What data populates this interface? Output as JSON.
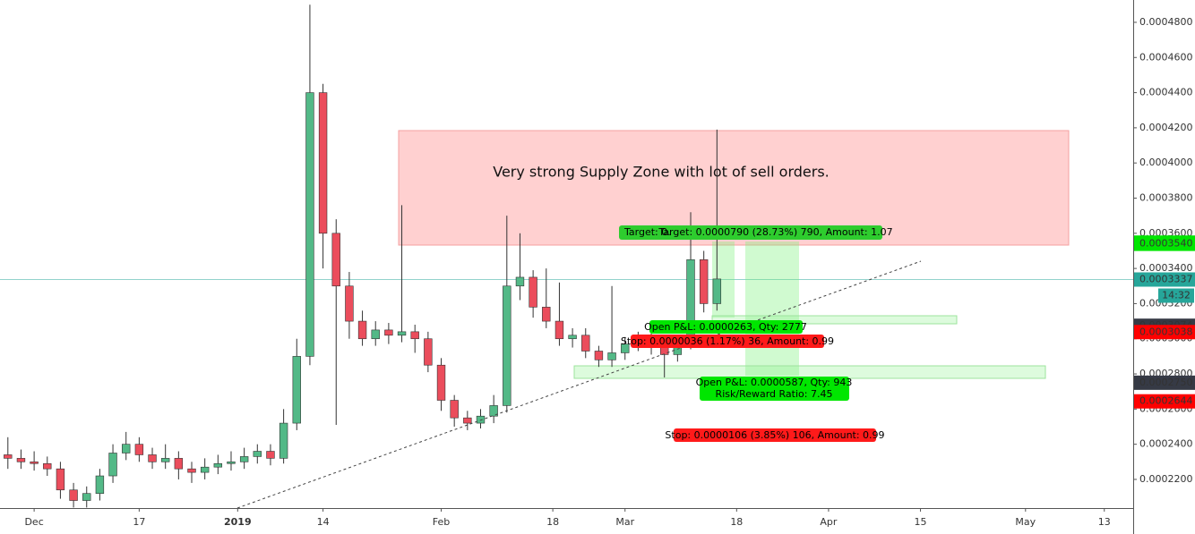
{
  "chart_data": {
    "type": "candlestick",
    "up_color": "#53b987",
    "down_color": "#eb4d5c",
    "x": [
      -4,
      -2,
      0,
      2,
      4,
      6,
      8,
      10,
      12,
      14,
      16,
      18,
      20,
      22,
      24,
      26,
      28,
      30,
      32,
      34,
      36,
      38,
      40,
      42,
      44,
      46,
      48,
      50,
      52,
      54,
      56,
      58,
      60,
      62,
      64,
      66,
      68,
      70,
      72,
      74,
      76,
      78,
      80,
      82,
      84,
      86,
      88,
      90,
      92,
      94,
      96,
      98,
      100,
      102,
      104
    ],
    "open": [
      0.000234,
      0.000232,
      0.00023,
      0.000229,
      0.000226,
      0.000214,
      0.000208,
      0.000212,
      0.000222,
      0.000235,
      0.00024,
      0.000234,
      0.00023,
      0.000232,
      0.000226,
      0.000224,
      0.000227,
      0.000229,
      0.00023,
      0.000233,
      0.000236,
      0.000232,
      0.000252,
      0.00029,
      0.00044,
      0.00036,
      0.00033,
      0.00031,
      0.0003,
      0.000305,
      0.000302,
      0.000304,
      0.0003,
      0.000285,
      0.000265,
      0.000255,
      0.000252,
      0.000256,
      0.000262,
      0.00033,
      0.000335,
      0.000318,
      0.00031,
      0.0003,
      0.000302,
      0.000293,
      0.000288,
      0.000292,
      0.000297,
      0.0003,
      0.000295,
      0.000291,
      0.000298,
      0.000345,
      0.00032
    ],
    "high": [
      0.000244,
      0.000237,
      0.000236,
      0.000233,
      0.00023,
      0.000218,
      0.000216,
      0.000226,
      0.00024,
      0.000247,
      0.000244,
      0.000238,
      0.00024,
      0.000236,
      0.00023,
      0.000232,
      0.000234,
      0.000236,
      0.000238,
      0.00024,
      0.00024,
      0.00026,
      0.0003,
      0.00049,
      0.000445,
      0.000368,
      0.000338,
      0.000316,
      0.00031,
      0.000309,
      0.000376,
      0.000308,
      0.000304,
      0.000289,
      0.000268,
      0.000259,
      0.00026,
      0.000268,
      0.00037,
      0.00036,
      0.000339,
      0.00034,
      0.000332,
      0.000306,
      0.000306,
      0.000296,
      0.00033,
      0.000301,
      0.000304,
      0.000303,
      0.000299,
      0.000302,
      0.000372,
      0.00035,
      0.000419
    ],
    "low": [
      0.000226,
      0.000226,
      0.000225,
      0.000222,
      0.000209,
      0.000204,
      0.000204,
      0.000208,
      0.000218,
      0.000231,
      0.00023,
      0.000226,
      0.000226,
      0.00022,
      0.000218,
      0.00022,
      0.000223,
      0.000225,
      0.000226,
      0.000229,
      0.000228,
      0.000229,
      0.000248,
      0.000285,
      0.00034,
      0.000251,
      0.0003,
      0.000296,
      0.000296,
      0.000297,
      0.000298,
      0.000292,
      0.000281,
      0.000259,
      0.00025,
      0.000248,
      0.000249,
      0.000252,
      0.000258,
      0.000322,
      0.000312,
      0.000306,
      0.000296,
      0.000295,
      0.000289,
      0.000284,
      0.000284,
      0.000288,
      0.000293,
      0.000291,
      0.000278,
      0.000287,
      0.000294,
      0.000315,
      0.000316
    ],
    "close": [
      0.000232,
      0.00023,
      0.000229,
      0.000226,
      0.000214,
      0.000208,
      0.000212,
      0.000222,
      0.000235,
      0.00024,
      0.000234,
      0.00023,
      0.000232,
      0.000226,
      0.000224,
      0.000227,
      0.000229,
      0.00023,
      0.000233,
      0.000236,
      0.000232,
      0.000252,
      0.00029,
      0.00044,
      0.00036,
      0.00033,
      0.00031,
      0.0003,
      0.000305,
      0.000302,
      0.000304,
      0.0003,
      0.000285,
      0.000265,
      0.000255,
      0.000252,
      0.000256,
      0.000262,
      0.00033,
      0.000335,
      0.000318,
      0.00031,
      0.0003,
      0.000302,
      0.000293,
      0.000288,
      0.000292,
      0.000297,
      0.0003,
      0.000295,
      0.000291,
      0.000298,
      0.000345,
      0.00032,
      0.000334
    ],
    "xlim": [
      -5.2,
      167.4
    ],
    "ylim": [
      0.0002037,
      0.0004927
    ],
    "xticks": [
      {
        "value": 0,
        "label": "Dec"
      },
      {
        "value": 16,
        "label": "17"
      },
      {
        "value": 31,
        "label": "2019"
      },
      {
        "value": 44,
        "label": "14"
      },
      {
        "value": 62,
        "label": "Feb"
      },
      {
        "value": 79,
        "label": "18"
      },
      {
        "value": 90,
        "label": "Mar"
      },
      {
        "value": 107,
        "label": "18"
      },
      {
        "value": 121,
        "label": "Apr"
      },
      {
        "value": 135,
        "label": "15"
      },
      {
        "value": 151,
        "label": "May"
      },
      {
        "value": 163,
        "label": "13"
      }
    ],
    "yticks": [
      {
        "value": 0.00022,
        "label": "0.0002200"
      },
      {
        "value": 0.00024,
        "label": "0.0002400"
      },
      {
        "value": 0.00026,
        "label": "0.0002600"
      },
      {
        "value": 0.00028,
        "label": "0.0002800"
      },
      {
        "value": 0.0003,
        "label": "0.0003000"
      },
      {
        "value": 0.00032,
        "label": "0.0003200"
      },
      {
        "value": 0.00034,
        "label": "0.0003400"
      },
      {
        "value": 0.00036,
        "label": "0.0003600"
      },
      {
        "value": 0.00038,
        "label": "0.0003800"
      },
      {
        "value": 0.0004,
        "label": "0.0004000"
      },
      {
        "value": 0.00042,
        "label": "0.0004200"
      },
      {
        "value": 0.00044,
        "label": "0.0004400"
      },
      {
        "value": 0.00046,
        "label": "0.0004600"
      },
      {
        "value": 0.00048,
        "label": "0.0004800"
      }
    ],
    "price_badges": [
      {
        "value": 0.0003547,
        "label": "0.0003547",
        "color": "#00e600"
      },
      {
        "value": 0.000354,
        "label": "0.0003540",
        "color": "#00e600"
      },
      {
        "value": 0.0003337,
        "label": "0.0003337",
        "color": "#26a69a",
        "line": true
      },
      {
        "value": 0.0003074,
        "label": "0.0003074",
        "color": "#363a45"
      },
      {
        "value": 0.0003038,
        "label": "0.0003038",
        "color": "#ff0000"
      },
      {
        "value": 0.000275,
        "label": "0.0002750",
        "color": "#363a45"
      },
      {
        "value": 0.0002644,
        "label": "0.0002644",
        "color": "#ff0000"
      }
    ],
    "countdown": "14:32",
    "annotations": {
      "supply_zone": "Very strong Supply Zone with lot of sell orders.",
      "target_1_cut": "Target: 0.0",
      "target_2": "Target: 0.0000790 (28.73%) 790, Amount: 1.07",
      "pnl_1": "Open P&L: 0.0000263, Qty: 2777",
      "stop_1": "Stop: 0.0000036 (1.17%) 36, Amount: 0.99",
      "pnl_2": "Open P&L: 0.0000587, Qty: 943",
      "rr_2": "Risk/Reward Ratio: 7.45",
      "stop_2": "Stop: 0.0000106 (3.85%) 106, Amount: 0.99"
    }
  }
}
